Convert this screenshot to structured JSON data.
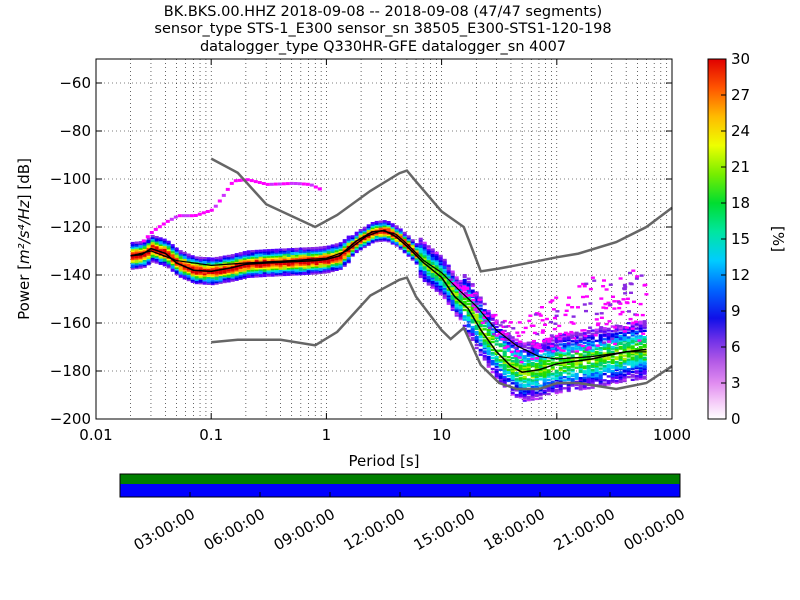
{
  "chart_data": [
    {
      "type": "heatmap",
      "title": "BK.BKS.00.HHZ   2018-09-08 -- 2018-09-08  (47/47 segments)",
      "subtitle": "sensor_type STS-1_E300 sensor_sn 38505_E300-STS1-120-198",
      "subtitle2": "datalogger_type Q330HR-GFE datalogger_sn 4007",
      "xlabel": "Period [s]",
      "ylabel_prefix": "Power [",
      "ylabel_unit": "m²/s⁴/Hz",
      "ylabel_suffix": "] [dB]",
      "xscale": "log",
      "xlim": [
        0.01,
        1000
      ],
      "ylim": [
        -200,
        -50
      ],
      "x_ticks": [
        0.01,
        0.1,
        1,
        10,
        100,
        1000
      ],
      "x_tick_labels": [
        "0.01",
        "0.1",
        "1",
        "10",
        "100",
        "1000"
      ],
      "y_ticks": [
        -200,
        -180,
        -160,
        -140,
        -120,
        -100,
        -80,
        -60
      ],
      "y_tick_labels": [
        "−200",
        "−180",
        "−160",
        "−140",
        "−120",
        "−100",
        "−80",
        "−60"
      ],
      "grid": true,
      "colorbar": {
        "label": "[%]",
        "range": [
          0,
          30
        ],
        "ticks": [
          0,
          3,
          6,
          9,
          12,
          15,
          18,
          21,
          24,
          27,
          30
        ],
        "tick_labels": [
          "0",
          "3",
          "6",
          "9",
          "12",
          "15",
          "18",
          "21",
          "24",
          "27",
          "30"
        ]
      },
      "noise_models": [
        {
          "points": [
            [
              0.1,
              -91.5
            ],
            [
              0.17,
              -97.4
            ],
            [
              0.3,
              -110.5
            ],
            [
              0.8,
              -120
            ],
            [
              1.24,
              -115
            ],
            [
              2.4,
              -105
            ],
            [
              4.3,
              -97.6
            ],
            [
              5,
              -96.5
            ],
            [
              6,
              -101
            ],
            [
              10,
              -113.5
            ],
            [
              15.6,
              -120
            ],
            [
              21.9,
              -138.5
            ],
            [
              31.6,
              -137.3
            ],
            [
              45,
              -135.9
            ],
            [
              70,
              -134.1
            ],
            [
              101,
              -132.6
            ],
            [
              154,
              -131.1
            ],
            [
              328,
              -126.3
            ],
            [
              600,
              -120
            ],
            [
              1000,
              -112
            ]
          ]
        },
        {
          "points": [
            [
              0.1,
              -168
            ],
            [
              0.17,
              -167
            ],
            [
              0.4,
              -167
            ],
            [
              0.8,
              -169.3
            ],
            [
              1.24,
              -163.7
            ],
            [
              2.4,
              -148.6
            ],
            [
              4.3,
              -142
            ],
            [
              5,
              -141.1
            ],
            [
              6,
              -149
            ],
            [
              10,
              -163
            ],
            [
              12,
              -166.7
            ],
            [
              15.6,
              -162
            ],
            [
              21.9,
              -177.5
            ],
            [
              31.6,
              -185
            ],
            [
              45,
              -187.5
            ],
            [
              70,
              -187.5
            ],
            [
              101,
              -185
            ],
            [
              154,
              -185
            ],
            [
              328,
              -187.5
            ],
            [
              600,
              -185
            ],
            [
              1000,
              -178
            ]
          ]
        }
      ],
      "mode_curve": [
        [
          0.02,
          -132
        ],
        [
          0.025,
          -131.5
        ],
        [
          0.03,
          -129
        ],
        [
          0.04,
          -131
        ],
        [
          0.05,
          -135
        ],
        [
          0.07,
          -138
        ],
        [
          0.1,
          -138.5
        ],
        [
          0.15,
          -137
        ],
        [
          0.2,
          -135.5
        ],
        [
          0.3,
          -135
        ],
        [
          0.5,
          -134.5
        ],
        [
          0.8,
          -134
        ],
        [
          1.0,
          -133.5
        ],
        [
          1.3,
          -132
        ],
        [
          1.8,
          -126
        ],
        [
          2.5,
          -122
        ],
        [
          3.2,
          -121.5
        ],
        [
          4,
          -124
        ],
        [
          5,
          -128
        ],
        [
          7,
          -135
        ],
        [
          10,
          -141
        ],
        [
          13,
          -149
        ],
        [
          17,
          -154
        ],
        [
          22,
          -163
        ],
        [
          30,
          -172
        ],
        [
          40,
          -178
        ],
        [
          50,
          -180.5
        ],
        [
          70,
          -179.5
        ],
        [
          100,
          -177
        ],
        [
          200,
          -175
        ],
        [
          400,
          -172
        ],
        [
          600,
          -171
        ]
      ],
      "mean_curve": [
        [
          0.02,
          -132
        ],
        [
          0.03,
          -130
        ],
        [
          0.05,
          -134
        ],
        [
          0.1,
          -136
        ],
        [
          0.2,
          -135
        ],
        [
          0.5,
          -134
        ],
        [
          1,
          -133
        ],
        [
          1.5,
          -130
        ],
        [
          2.2,
          -124
        ],
        [
          3,
          -121.5
        ],
        [
          4,
          -123
        ],
        [
          5,
          -127
        ],
        [
          7,
          -134
        ],
        [
          10,
          -139
        ],
        [
          14,
          -146
        ],
        [
          20,
          -153
        ],
        [
          30,
          -163
        ],
        [
          45,
          -169.5
        ],
        [
          70,
          -174
        ],
        [
          100,
          -175
        ],
        [
          200,
          -174
        ],
        [
          400,
          -172
        ],
        [
          600,
          -172
        ]
      ],
      "outlier_curve": [
        [
          0.025,
          -126
        ],
        [
          0.03,
          -122
        ],
        [
          0.04,
          -118
        ],
        [
          0.05,
          -115.5
        ],
        [
          0.07,
          -115.5
        ],
        [
          0.1,
          -113
        ],
        [
          0.12,
          -108
        ],
        [
          0.15,
          -101
        ],
        [
          0.2,
          -100.5
        ],
        [
          0.3,
          -102.5
        ],
        [
          0.5,
          -102
        ],
        [
          0.7,
          -102.5
        ],
        [
          0.9,
          -105
        ]
      ]
    },
    {
      "type": "bar",
      "title": "",
      "xlabel": "",
      "ylabel": "",
      "x_tick_labels": [
        "03:00:00",
        "06:00:00",
        "09:00:00",
        "12:00:00",
        "15:00:00",
        "18:00:00",
        "21:00:00",
        "00:00:00"
      ],
      "rows": [
        {
          "color": "#007f00",
          "coverage": [
            0,
            1
          ]
        },
        {
          "color": "#0000ff",
          "coverage": [
            0,
            1
          ]
        }
      ]
    }
  ]
}
